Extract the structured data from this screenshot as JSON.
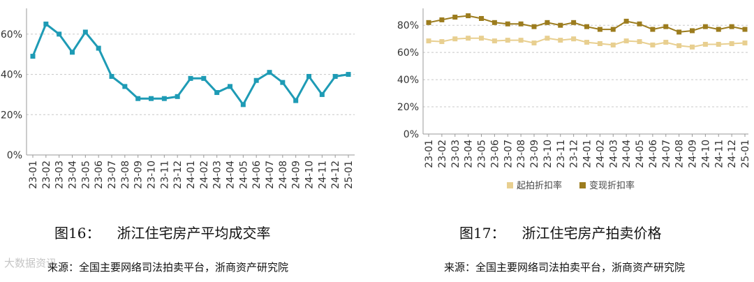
{
  "figures": [
    {
      "caption_number": "图16：",
      "caption_title": "浙江住宅房产平均成交率",
      "source": "来源：全国主要网络司法拍卖平台，浙商资产研究院"
    },
    {
      "caption_number": "图17：",
      "caption_title": "浙江住宅房产拍卖价格",
      "source": "来源：全国主要网络司法拍卖平台，浙商资产研究院"
    }
  ],
  "watermark": "大数据资讯",
  "colors": {
    "transaction_rate": "#1e9bb5",
    "starting_discount": "#e8cf90",
    "sale_discount": "#9c7c1e",
    "grid": "#c8c8c8",
    "axis": "#999999"
  },
  "chart_data": [
    {
      "type": "line",
      "title": "",
      "categories": [
        "23-01",
        "23-02",
        "23-03",
        "23-04",
        "23-05",
        "23-06",
        "23-07",
        "23-08",
        "23-09",
        "23-10",
        "23-11",
        "23-12",
        "24-01",
        "24-02",
        "24-03",
        "24-04",
        "24-05",
        "24-06",
        "24-07",
        "24-08",
        "24-09",
        "24-10",
        "24-11",
        "24-12",
        "25-01"
      ],
      "series": [
        {
          "name": "",
          "values": [
            49,
            65,
            60,
            51,
            61,
            53,
            39,
            34,
            28,
            28,
            28,
            29,
            38,
            38,
            31,
            34,
            25,
            37,
            41,
            36,
            27,
            39,
            30,
            39,
            40
          ]
        }
      ],
      "ylim": [
        0,
        70
      ],
      "yticks": [
        "0%",
        "20%",
        "40%",
        "60%"
      ],
      "ytick_values": [
        0,
        20,
        40,
        60
      ],
      "grid": true,
      "legend": "none"
    },
    {
      "type": "line",
      "title": "",
      "categories": [
        "23-01",
        "23-02",
        "23-03",
        "23-04",
        "23-05",
        "23-06",
        "23-07",
        "23-08",
        "23-09",
        "23-10",
        "23-11",
        "23-12",
        "24-01",
        "24-02",
        "24-03",
        "24-04",
        "24-05",
        "24-06",
        "24-07",
        "24-08",
        "24-09",
        "24-10",
        "24-11",
        "24-12",
        "25-01"
      ],
      "series": [
        {
          "name": "起拍折扣率",
          "values": [
            68.5,
            68,
            70,
            70.5,
            70.5,
            68.5,
            69,
            69,
            67,
            70.5,
            69,
            70,
            67.5,
            66.5,
            65.5,
            68.5,
            68,
            65.5,
            67.5,
            65,
            64,
            66,
            66,
            66.5,
            67
          ]
        },
        {
          "name": "变现折扣率",
          "values": [
            82,
            84,
            86,
            87,
            85,
            82,
            81,
            81,
            79,
            82,
            80,
            82,
            79,
            77,
            77,
            83,
            81,
            77,
            79,
            75,
            76,
            79,
            77,
            79,
            77
          ]
        }
      ],
      "ylim": [
        0,
        95
      ],
      "yticks": [
        "0%",
        "20%",
        "40%",
        "60%",
        "80%"
      ],
      "ytick_values": [
        0,
        20,
        40,
        60,
        80
      ],
      "grid": true,
      "legend": "bottom"
    }
  ]
}
